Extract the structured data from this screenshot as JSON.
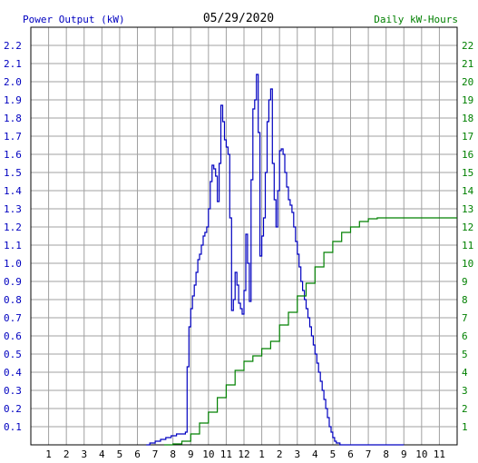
{
  "chart_data": {
    "type": "line",
    "title": "05/29/2020",
    "ylabel_left": "Power Output (kW)",
    "ylabel_right": "Daily kW-Hours",
    "x_tick_labels": [
      "1",
      "2",
      "3",
      "4",
      "5",
      "6",
      "7",
      "8",
      "9",
      "10",
      "11",
      "12",
      "1",
      "2",
      "3",
      "4",
      "5",
      "6",
      "7",
      "8",
      "9",
      "10",
      "11"
    ],
    "y_left_ticks": [
      "0.1",
      "0.2",
      "0.3",
      "0.4",
      "0.5",
      "0.6",
      "0.7",
      "0.8",
      "0.9",
      "1.0",
      "1.1",
      "1.2",
      "1.3",
      "1.4",
      "1.5",
      "1.6",
      "1.7",
      "1.8",
      "1.9",
      "2.0",
      "2.1",
      "2.2"
    ],
    "y_right_ticks": [
      "1",
      "2",
      "3",
      "4",
      "5",
      "6",
      "7",
      "8",
      "9",
      "10",
      "11",
      "12",
      "13",
      "14",
      "15",
      "16",
      "17",
      "18",
      "19",
      "20",
      "21",
      "22"
    ],
    "ylim_left": [
      0,
      2.3
    ],
    "ylim_right": [
      0,
      23
    ],
    "xlim_hours": [
      0,
      24
    ],
    "grid": true,
    "colors": {
      "power": "#0000c0",
      "energy": "#008000",
      "grid": "#a0a0a0"
    },
    "series": [
      {
        "name": "Power Output (kW)",
        "color": "#0000c0",
        "x": [
          6.5,
          6.7,
          7.0,
          7.3,
          7.6,
          7.9,
          8.2,
          8.5,
          8.7,
          8.8,
          8.9,
          9.0,
          9.1,
          9.2,
          9.3,
          9.4,
          9.5,
          9.6,
          9.7,
          9.8,
          9.9,
          10.0,
          10.1,
          10.2,
          10.3,
          10.4,
          10.5,
          10.6,
          10.7,
          10.8,
          10.9,
          11.0,
          11.1,
          11.2,
          11.3,
          11.4,
          11.5,
          11.6,
          11.7,
          11.8,
          11.9,
          12.0,
          12.1,
          12.2,
          12.3,
          12.4,
          12.5,
          12.6,
          12.7,
          12.8,
          12.9,
          13.0,
          13.1,
          13.2,
          13.3,
          13.4,
          13.5,
          13.6,
          13.7,
          13.8,
          13.9,
          14.0,
          14.1,
          14.2,
          14.3,
          14.4,
          14.5,
          14.6,
          14.7,
          14.8,
          14.9,
          15.0,
          15.1,
          15.2,
          15.3,
          15.4,
          15.5,
          15.6,
          15.7,
          15.8,
          15.9,
          16.0,
          16.1,
          16.2,
          16.3,
          16.4,
          16.5,
          16.6,
          16.7,
          16.8,
          16.9,
          17.0,
          17.1,
          17.2,
          17.3,
          17.4,
          17.5,
          17.6,
          17.7,
          17.8,
          17.9,
          18.0,
          18.1,
          18.2,
          18.3,
          18.4,
          18.5,
          18.6,
          18.7,
          18.8,
          18.9,
          19.0,
          19.1,
          19.2,
          19.3,
          19.4,
          19.5,
          19.6,
          19.7,
          19.8,
          19.9,
          20.0,
          20.3,
          20.6,
          21.0
        ],
        "values": [
          0.0,
          0.01,
          0.02,
          0.03,
          0.04,
          0.05,
          0.06,
          0.06,
          0.07,
          0.43,
          0.65,
          0.75,
          0.82,
          0.88,
          0.95,
          1.02,
          1.05,
          1.1,
          1.15,
          1.17,
          1.2,
          1.3,
          1.45,
          1.54,
          1.52,
          1.48,
          1.34,
          1.55,
          1.87,
          1.78,
          1.68,
          1.64,
          1.6,
          1.25,
          0.74,
          0.8,
          0.95,
          0.88,
          0.78,
          0.75,
          0.72,
          0.85,
          1.16,
          1.0,
          0.79,
          1.46,
          1.85,
          1.9,
          2.04,
          1.72,
          1.04,
          1.15,
          1.25,
          1.5,
          1.78,
          1.9,
          1.96,
          1.55,
          1.35,
          1.2,
          1.4,
          1.62,
          1.63,
          1.6,
          1.5,
          1.42,
          1.35,
          1.32,
          1.28,
          1.2,
          1.12,
          1.05,
          0.98,
          0.9,
          0.85,
          0.8,
          0.75,
          0.7,
          0.65,
          0.6,
          0.55,
          0.5,
          0.45,
          0.4,
          0.35,
          0.3,
          0.25,
          0.2,
          0.15,
          0.1,
          0.07,
          0.04,
          0.02,
          0.01,
          0.01,
          0.0,
          0.0,
          0.0,
          0.0,
          0.0,
          0.0,
          0.0,
          0.0,
          0.0,
          0.0,
          0.0,
          0.0,
          0.0,
          0.0,
          0.0,
          0.0,
          0.0,
          0.0,
          0.0,
          0.0,
          0.0,
          0.0,
          0.0,
          0.0,
          0.0,
          0.0,
          0.0,
          0.0,
          0.0,
          0.0
        ]
      },
      {
        "name": "Daily kW-Hours",
        "color": "#008000",
        "x": [
          7.5,
          8.0,
          8.5,
          9.0,
          9.5,
          10.0,
          10.5,
          11.0,
          11.5,
          12.0,
          12.5,
          13.0,
          13.5,
          14.0,
          14.5,
          15.0,
          15.5,
          16.0,
          16.5,
          17.0,
          17.5,
          18.0,
          18.5,
          19.0,
          19.5,
          20.0,
          21.0,
          22.0,
          24.0
        ],
        "values": [
          0.0,
          0.05,
          0.2,
          0.6,
          1.2,
          1.8,
          2.6,
          3.3,
          4.1,
          4.6,
          4.9,
          5.3,
          5.7,
          6.6,
          7.3,
          8.2,
          8.9,
          9.8,
          10.6,
          11.2,
          11.7,
          12.0,
          12.3,
          12.45,
          12.5,
          12.5,
          12.5,
          12.5,
          12.5
        ]
      }
    ]
  }
}
